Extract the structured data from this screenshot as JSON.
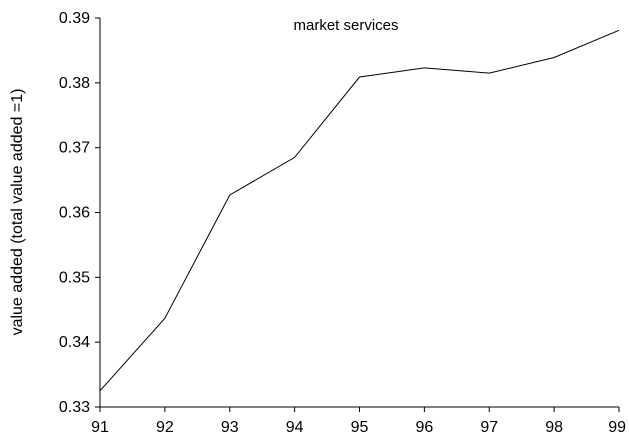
{
  "chart_data": {
    "type": "line",
    "title": "market services",
    "xlabel": "",
    "ylabel": "value added (total value added =1)",
    "x": [
      "91",
      "92",
      "93",
      "94",
      "95",
      "96",
      "97",
      "98",
      "99"
    ],
    "series": [
      {
        "values": [
          0.3325,
          0.3437,
          0.3627,
          0.3685,
          0.3809,
          0.3823,
          0.3815,
          0.3839,
          0.3881
        ]
      }
    ],
    "xticks": [
      "91",
      "92",
      "93",
      "94",
      "95",
      "96",
      "97",
      "98",
      "99"
    ],
    "yticks": [
      "0.33",
      "0.34",
      "0.35",
      "0.36",
      "0.37",
      "0.38",
      "0.39"
    ],
    "ylim": [
      0.33,
      0.39
    ],
    "grid": false,
    "line_color": "#000000"
  }
}
